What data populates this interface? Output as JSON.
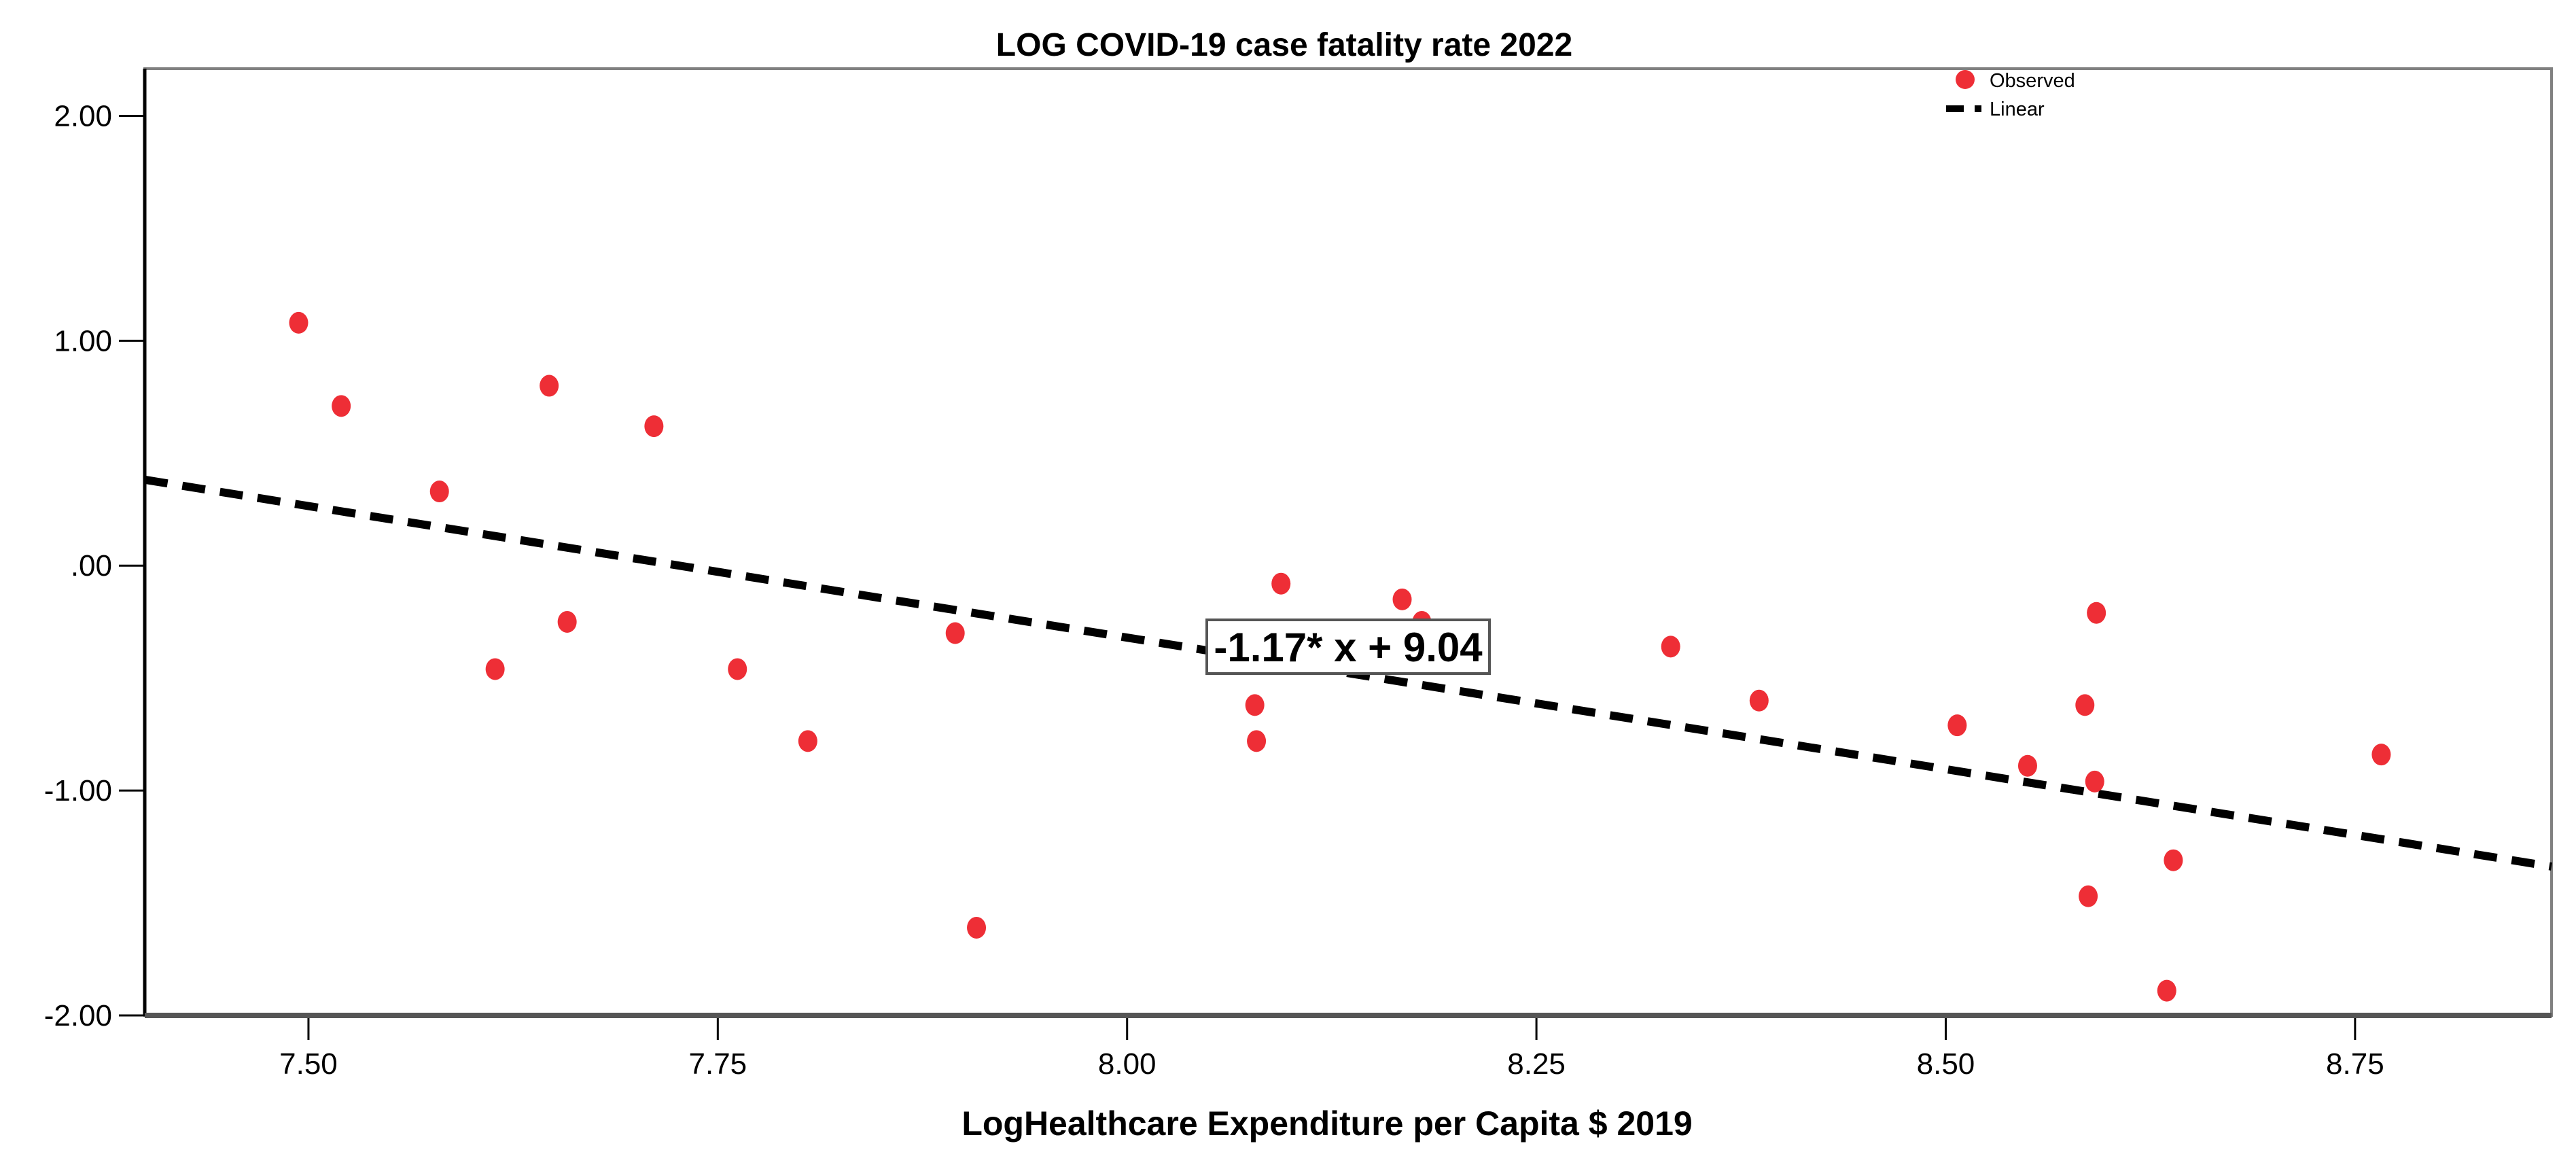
{
  "chart_data": {
    "type": "scatter",
    "title": "LOG COVID-19 case fatality rate 2022",
    "xlabel": "LogHealthcare Expenditure per Capita $ 2019",
    "ylabel": "",
    "xlim": [
      7.4,
      8.87
    ],
    "ylim": [
      -2.0,
      2.21
    ],
    "xticks": [
      7.5,
      7.75,
      8.0,
      8.25,
      8.5,
      8.75
    ],
    "xtick_labels": [
      "7.50",
      "7.75",
      "8.00",
      "8.25",
      "8.50",
      "8.75"
    ],
    "yticks": [
      2,
      1,
      0,
      -1,
      -2
    ],
    "ytick_labels": [
      "2.00",
      "1.00",
      ".00",
      "-1.00",
      "-2.00"
    ],
    "grid": false,
    "legend": {
      "placement": "top-right",
      "entries": [
        "Observed",
        "Linear"
      ]
    },
    "series": [
      {
        "name": "Observed",
        "color": "#ee2e36",
        "points": [
          [
            7.494,
            1.08
          ],
          [
            7.52,
            0.71
          ],
          [
            7.58,
            0.33
          ],
          [
            7.647,
            0.8
          ],
          [
            7.711,
            0.62
          ],
          [
            7.614,
            -0.46
          ],
          [
            7.658,
            -0.25
          ],
          [
            7.762,
            -0.46
          ],
          [
            7.805,
            -0.78
          ],
          [
            7.895,
            -0.3
          ],
          [
            7.908,
            -1.61
          ],
          [
            8.094,
            -0.08
          ],
          [
            8.078,
            -0.62
          ],
          [
            8.079,
            -0.78
          ],
          [
            8.168,
            -0.15
          ],
          [
            8.18,
            -0.25
          ],
          [
            8.332,
            -0.36
          ],
          [
            8.386,
            -0.6
          ],
          [
            8.507,
            -0.71
          ],
          [
            8.55,
            -0.89
          ],
          [
            8.592,
            -0.21
          ],
          [
            8.585,
            -0.62
          ],
          [
            8.591,
            -0.96
          ],
          [
            8.587,
            -1.47
          ],
          [
            8.639,
            -1.31
          ],
          [
            8.635,
            -1.89
          ],
          [
            8.766,
            -0.84
          ]
        ]
      },
      {
        "name": "Linear",
        "color": "#000000",
        "slope": -1.17,
        "intercept": 9.04
      }
    ],
    "annotations": [
      "-1.17* x + 9.04"
    ]
  }
}
